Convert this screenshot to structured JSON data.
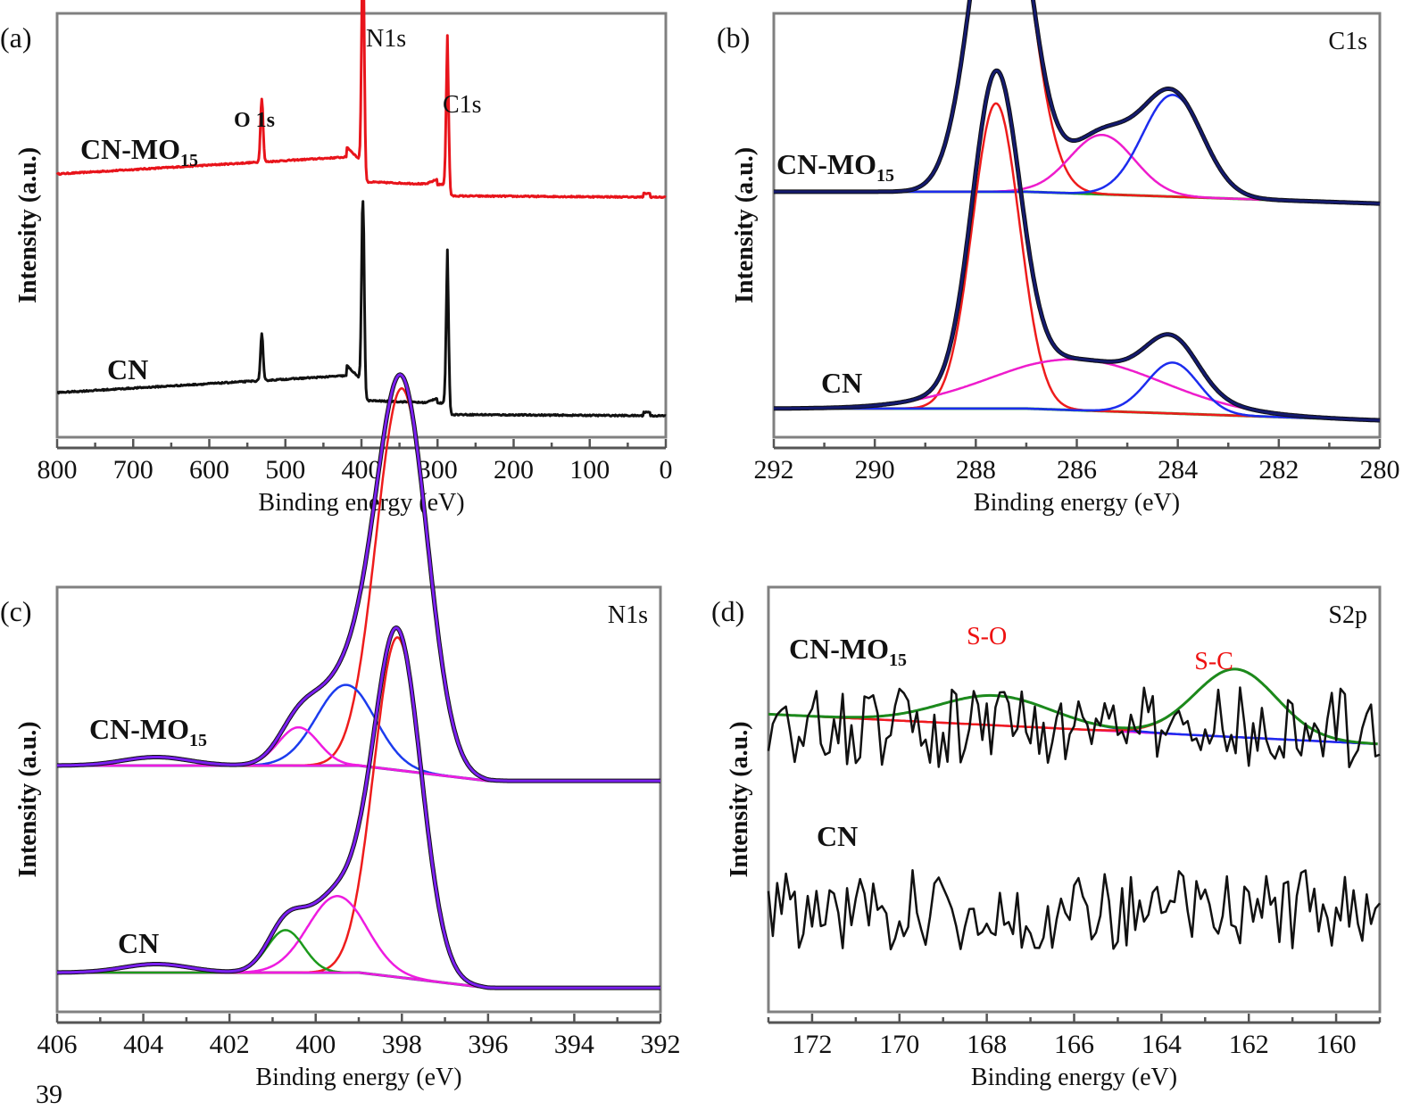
{
  "figure": {
    "stray_text": "39"
  },
  "chart_data": [
    {
      "id": "a",
      "type": "line",
      "panel_label": "(a)",
      "title": "",
      "xlabel": "Binding energy (eV)",
      "ylabel": "Intensity (a.u.)",
      "xlim": [
        800,
        0
      ],
      "xticks": [
        "800",
        "700",
        "600",
        "500",
        "400",
        "300",
        "200",
        "100",
        "0"
      ],
      "xtick_values": [
        800,
        700,
        600,
        500,
        400,
        300,
        200,
        100,
        0
      ],
      "grid": false,
      "annotations": [
        {
          "text": "N1s",
          "x": 398,
          "series": "CN-MO15"
        },
        {
          "text": "O 1s",
          "x": 531,
          "series": "CN-MO15"
        },
        {
          "text": "C1s",
          "x": 288,
          "series": "CN-MO15"
        }
      ],
      "series": [
        {
          "name": "CN-MO15",
          "label_main": "CN-MO",
          "label_sub": "15",
          "color": "#e8141b",
          "peaks": [
            {
              "x": 531,
              "height": 0.15
            },
            {
              "x": 398,
              "height": 0.55
            },
            {
              "x": 287,
              "height": 0.32
            }
          ]
        },
        {
          "name": "CN",
          "label_main": "CN",
          "label_sub": "",
          "color": "#111111",
          "peaks": [
            {
              "x": 531,
              "height": 0.11
            },
            {
              "x": 398,
              "height": 0.47
            },
            {
              "x": 287,
              "height": 0.33
            }
          ]
        }
      ]
    },
    {
      "id": "b",
      "type": "line",
      "panel_label": "(b)",
      "region": "C1s",
      "xlabel": "Binding energy (eV)",
      "ylabel": "Intensity (a.u.)",
      "xlim": [
        292,
        280
      ],
      "xticks": [
        "292",
        "290",
        "288",
        "286",
        "284",
        "282",
        "280"
      ],
      "xtick_values": [
        292,
        290,
        288,
        286,
        284,
        282,
        280
      ],
      "grid": false,
      "series_colors": {
        "envelope": "#141a6e",
        "c1": "#ee1c1c",
        "c2": "#ee1ccc",
        "c3": "#1c2cee",
        "background": "#1c9a1c"
      },
      "samples": [
        {
          "name": "CN-MO15",
          "label_main": "CN-MO",
          "label_sub": "15",
          "components": [
            {
              "color_key": "c1",
              "center": 287.5,
              "fwhm": 1.3,
              "height": 0.85
            },
            {
              "color_key": "c2",
              "center": 285.5,
              "fwhm": 1.5,
              "height": 0.14
            },
            {
              "color_key": "c3",
              "center": 284.1,
              "fwhm": 1.4,
              "height": 0.24
            }
          ]
        },
        {
          "name": "CN",
          "label_main": "CN",
          "label_sub": "",
          "components": [
            {
              "color_key": "c1",
              "center": 287.6,
              "fwhm": 1.1,
              "height": 0.72
            },
            {
              "color_key": "c2",
              "center": 286.0,
              "fwhm": 4.0,
              "height": 0.12
            },
            {
              "color_key": "c3",
              "center": 284.1,
              "fwhm": 1.2,
              "height": 0.12
            }
          ]
        }
      ]
    },
    {
      "id": "c",
      "type": "line",
      "panel_label": "(c)",
      "region": "N1s",
      "xlabel": "Binding energy (eV)",
      "ylabel": "Intensity (a.u.)",
      "xlim": [
        406,
        392
      ],
      "xticks": [
        "406",
        "404",
        "402",
        "400",
        "398",
        "396",
        "394",
        "392"
      ],
      "xtick_values": [
        406,
        404,
        402,
        400,
        398,
        396,
        394,
        392
      ],
      "grid": false,
      "series_colors": {
        "envelope": "#7a1ff0",
        "c1": "#ee1c1c",
        "c2": "#1c3cee",
        "c3": "#ee1ce0",
        "c4": "#1c9a1c",
        "background": "#1a237a"
      },
      "samples": [
        {
          "name": "CN-MO15",
          "label_main": "CN-MO",
          "label_sub": "15",
          "components": [
            {
              "color_key": "c1",
              "center": 398.0,
              "fwhm": 1.4,
              "height": 0.9
            },
            {
              "color_key": "c2",
              "center": 399.3,
              "fwhm": 1.6,
              "height": 0.19
            },
            {
              "color_key": "c3",
              "center": 400.4,
              "fwhm": 1.1,
              "height": 0.09
            },
            {
              "color_key": "c3",
              "center": 403.7,
              "fwhm": 1.8,
              "height": 0.02
            }
          ]
        },
        {
          "name": "CN",
          "label_main": "CN",
          "label_sub": "",
          "components": [
            {
              "color_key": "c1",
              "center": 398.1,
              "fwhm": 1.3,
              "height": 0.8
            },
            {
              "color_key": "c3",
              "center": 399.5,
              "fwhm": 1.6,
              "height": 0.18
            },
            {
              "color_key": "c4",
              "center": 400.7,
              "fwhm": 1.0,
              "height": 0.1
            },
            {
              "color_key": "c3",
              "center": 403.7,
              "fwhm": 1.8,
              "height": 0.02
            }
          ]
        }
      ]
    },
    {
      "id": "d",
      "type": "line",
      "panel_label": "(d)",
      "region": "S2p",
      "xlabel": "Binding energy (eV)",
      "ylabel": "Intensity (a.u.)",
      "xlim": [
        173,
        159
      ],
      "xticks": [
        "172",
        "170",
        "168",
        "166",
        "164",
        "162",
        "160"
      ],
      "xtick_values": [
        172,
        170,
        168,
        166,
        164,
        162,
        160
      ],
      "grid": false,
      "annotations": [
        {
          "text": "S-O",
          "x": 168,
          "color": "#e11"
        },
        {
          "text": "S-C",
          "x": 162.8,
          "color": "#e11"
        }
      ],
      "series_colors": {
        "raw": "#111111",
        "envelope": "#1c8a1c",
        "so": "#1c2cee",
        "sc": "#ee1c1c",
        "background": "#ee1cee"
      },
      "samples": [
        {
          "name": "CN-MO15",
          "label_main": "CN-MO",
          "label_sub": "15",
          "noisy": true,
          "components": [
            {
              "color_key": "so",
              "center": 167.8,
              "fwhm": 3.0,
              "height": 0.07
            },
            {
              "color_key": "sc",
              "center": 162.3,
              "fwhm": 2.2,
              "height": 0.16
            }
          ]
        },
        {
          "name": "CN",
          "label_main": "CN",
          "label_sub": "",
          "noisy": true,
          "components": []
        }
      ]
    }
  ]
}
